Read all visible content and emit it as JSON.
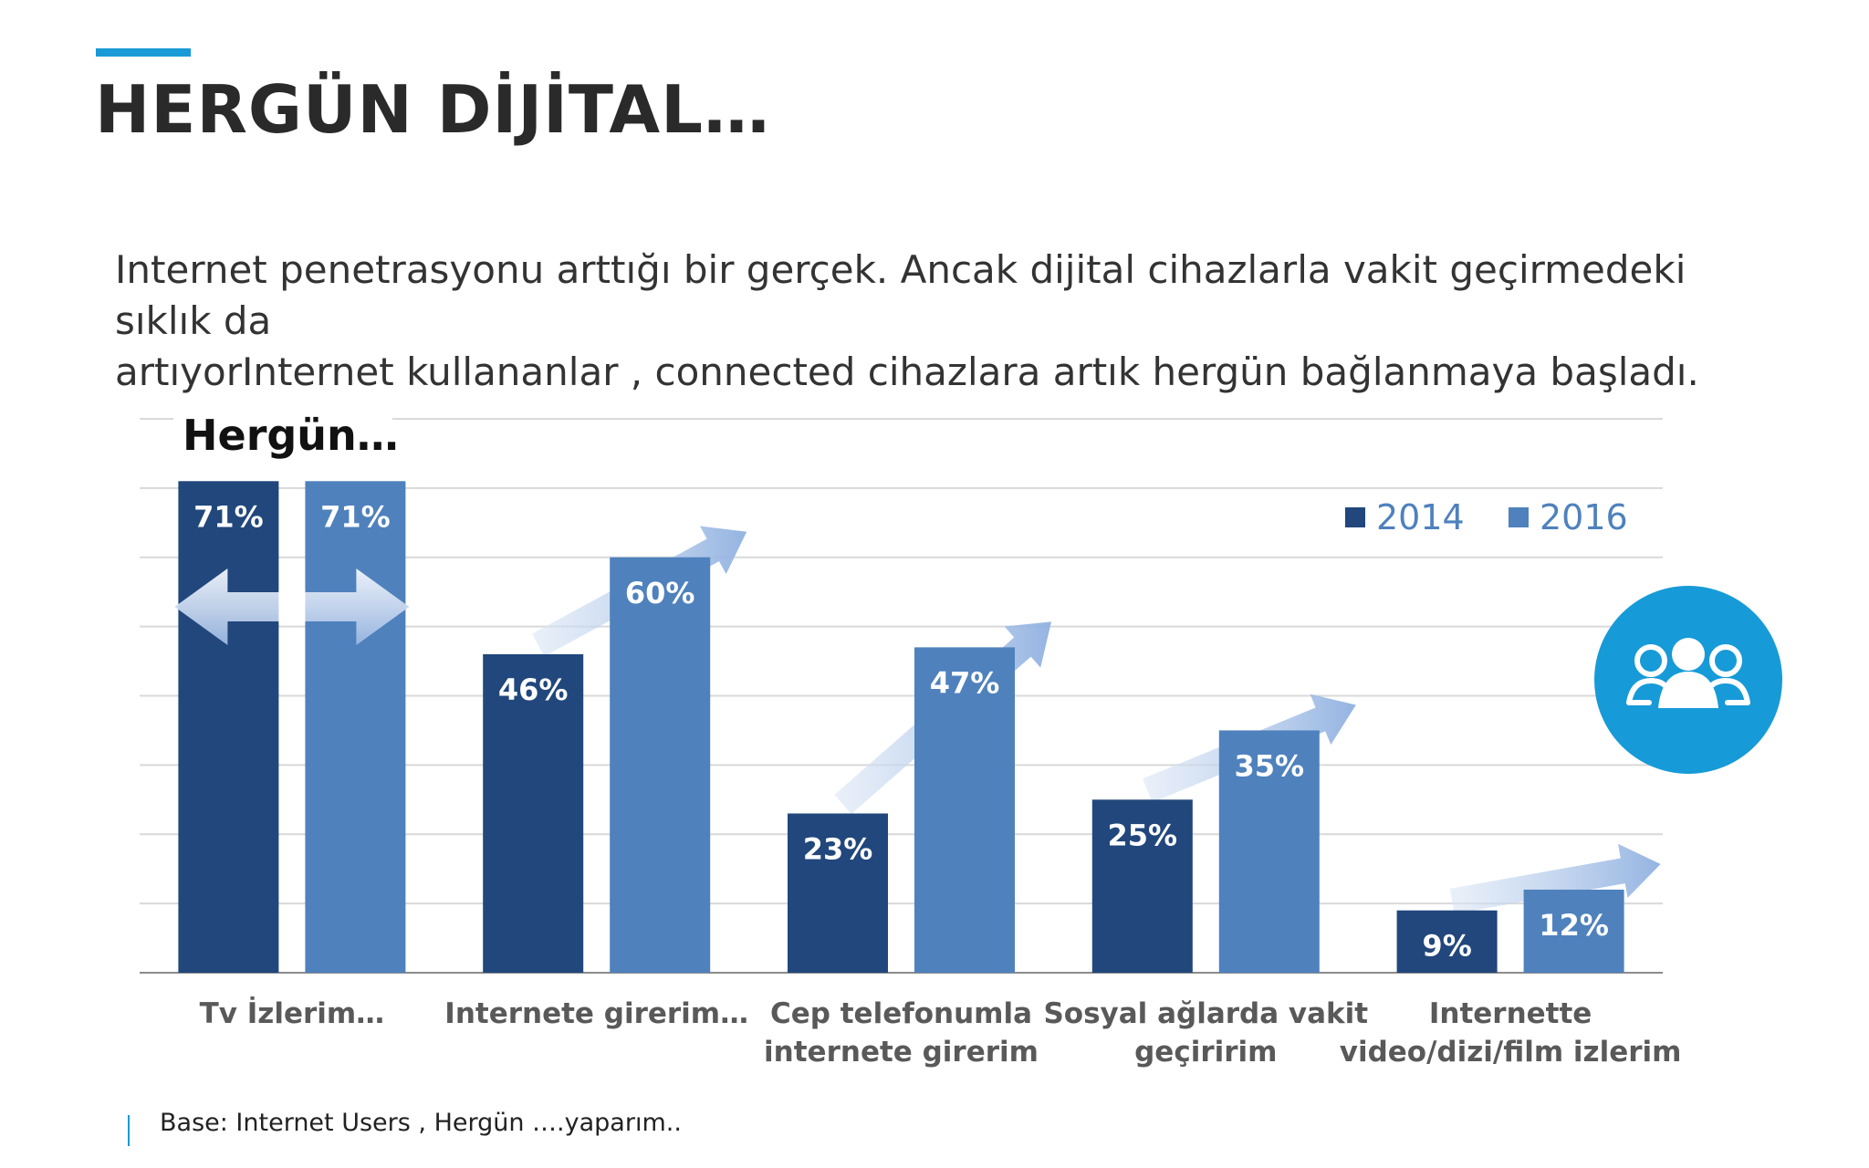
{
  "page": {
    "title": "HERGÜN DİJİTAL…",
    "intro_line1": "Internet penetrasyonu arttığı bir gerçek. Ancak dijital cihazlarla vakit geçirmedeki sıklık da",
    "intro_line2": "artıyorInternet kullananlar , connected cihazlara artık hergün bağlanmaya başladı.",
    "footnote": "Base: Internet Users , Hergün ….yaparım.."
  },
  "chart_data": {
    "type": "bar",
    "title": "Hergün…",
    "categories": [
      [
        "Tv İzlerim…"
      ],
      [
        "Internete girerim…"
      ],
      [
        "Cep  telefonumla",
        "internete girerim"
      ],
      [
        "Sosyal ağlarda vakit",
        "geçiririm"
      ],
      [
        "Internette",
        "video/dizi/film izlerim"
      ]
    ],
    "series": [
      {
        "name": "2014",
        "values": [
          71,
          46,
          23,
          25,
          9
        ],
        "labels": [
          "71%",
          "46%",
          "23%",
          "25%",
          "9%"
        ],
        "color": "#21477c"
      },
      {
        "name": "2016",
        "values": [
          71,
          60,
          47,
          35,
          12
        ],
        "labels": [
          "71%",
          "60%",
          "47%",
          "35%",
          "12%"
        ],
        "color": "#4f81bd"
      }
    ],
    "ylim": [
      0,
      80
    ],
    "grid": true,
    "legend_position": "top-right",
    "icon": "people-group-icon",
    "icon_color": "#179ad8"
  }
}
